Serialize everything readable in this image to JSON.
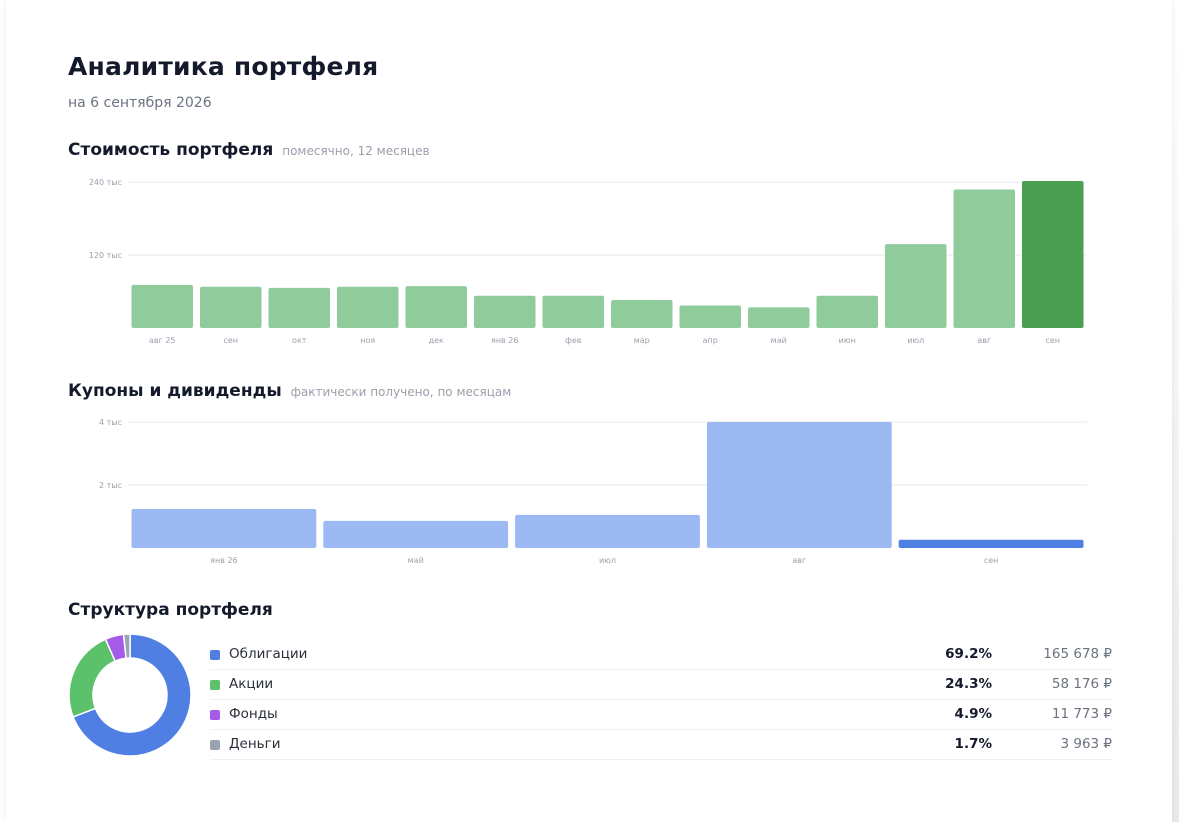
{
  "header": {
    "title": "Аналитика портфеля",
    "subtitle": "на 6 сентября 2026"
  },
  "sections": {
    "value": {
      "title": "Стоимость портфеля",
      "hint": "помесячно, 12 месяцев"
    },
    "income": {
      "title": "Купоны и дивиденды",
      "hint": "фактически получено, по месяцам"
    },
    "structure": {
      "title": "Структура портфеля"
    }
  },
  "colors": {
    "green_bar": "#8fcb9b",
    "green_current": "#4a9f53",
    "blue_bar": "#9db9f3",
    "blue_current": "#4f7fe2",
    "grid": "#e8eaee"
  },
  "chart_data": [
    {
      "type": "bar",
      "id": "portfolio-value",
      "title": "Стоимость портфеля",
      "categories": [
        "авг 25",
        "сен",
        "окт",
        "ноя",
        "дек",
        "янв 26",
        "фев",
        "мар",
        "апр",
        "май",
        "июн",
        "июл",
        "авг",
        "сен"
      ],
      "values": [
        71000,
        68000,
        66000,
        68000,
        69000,
        53000,
        53000,
        46000,
        37000,
        34000,
        53000,
        138000,
        228000,
        242000
      ],
      "highlight_index": 13,
      "yticks": [
        {
          "value": 120000,
          "label": "120 тыс"
        },
        {
          "value": 240000,
          "label": "240 тыс"
        }
      ],
      "ylim": [
        0,
        242000
      ],
      "grid": true
    },
    {
      "type": "bar",
      "id": "coupons-dividends",
      "title": "Купоны и дивиденды",
      "categories": [
        "янв 26",
        "май",
        "июл",
        "авг",
        "сен"
      ],
      "values": [
        1240,
        860,
        1050,
        4000,
        260
      ],
      "highlight_index": 4,
      "yticks": [
        {
          "value": 2000,
          "label": "2 тыс"
        },
        {
          "value": 4000,
          "label": "4 тыс"
        }
      ],
      "ylim": [
        0,
        4000
      ],
      "grid": true
    },
    {
      "type": "pie",
      "id": "portfolio-structure",
      "title": "Структура портфеля",
      "donut": true,
      "slices": [
        {
          "label": "Облигации",
          "percent": 69.2,
          "percent_label": "69.2%",
          "amount_label": "165 678 ₽",
          "color": "#4f7fe2"
        },
        {
          "label": "Акции",
          "percent": 24.3,
          "percent_label": "24.3%",
          "amount_label": "58 176 ₽",
          "color": "#5cc16b"
        },
        {
          "label": "Фонды",
          "percent": 4.9,
          "percent_label": "4.9%",
          "amount_label": "11 773 ₽",
          "color": "#a35be8"
        },
        {
          "label": "Деньги",
          "percent": 1.7,
          "percent_label": "1.7%",
          "amount_label": "3 963 ₽",
          "color": "#9aa3b2"
        }
      ]
    }
  ]
}
